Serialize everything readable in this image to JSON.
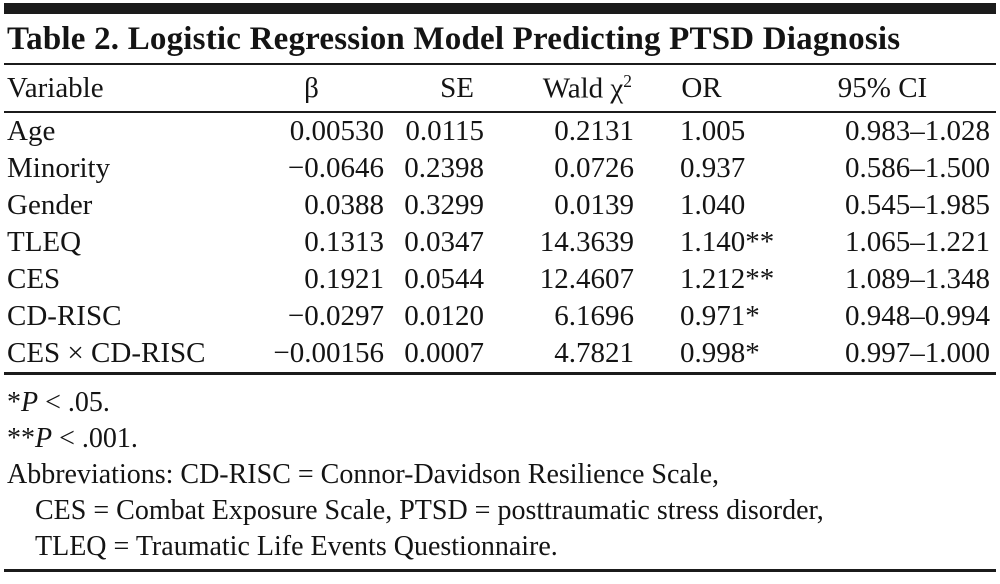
{
  "colors": {
    "background": "#ffffff",
    "text": "#141414",
    "rule": "#1b1b1b"
  },
  "table": {
    "title": "Table 2. Logistic Regression Model Predicting PTSD Diagnosis",
    "header": {
      "variable": "Variable",
      "beta": "β",
      "se": "SE",
      "wald_base": "Wald χ",
      "wald_sup": "2",
      "or": "OR",
      "ci": "95% CI"
    },
    "rows": [
      {
        "variable": "Age",
        "beta": "0.00530",
        "se": "0.0115",
        "wald": "0.2131",
        "or": "1.005",
        "or_stars": "",
        "ci": "0.983–1.028"
      },
      {
        "variable": "Minority",
        "beta": "−0.0646",
        "se": "0.2398",
        "wald": "0.0726",
        "or": "0.937",
        "or_stars": "",
        "ci": "0.586–1.500"
      },
      {
        "variable": "Gender",
        "beta": "0.0388",
        "se": "0.3299",
        "wald": "0.0139",
        "or": "1.040",
        "or_stars": "",
        "ci": "0.545–1.985"
      },
      {
        "variable": "TLEQ",
        "beta": "0.1313",
        "se": "0.0347",
        "wald": "14.3639",
        "or": "1.140",
        "or_stars": "**",
        "ci": "1.065–1.221"
      },
      {
        "variable": "CES",
        "beta": "0.1921",
        "se": "0.0544",
        "wald": "12.4607",
        "or": "1.212",
        "or_stars": "**",
        "ci": "1.089–1.348"
      },
      {
        "variable": "CD-RISC",
        "beta": "−0.0297",
        "se": "0.0120",
        "wald": "6.1696",
        "or": "0.971",
        "or_stars": "*",
        "ci": "0.948–0.994"
      },
      {
        "variable": "CES × CD-RISC",
        "beta": "−0.00156",
        "se": "0.0007",
        "wald": "4.7821",
        "or": "0.998",
        "or_stars": "*",
        "ci": "0.997–1.000"
      }
    ]
  },
  "footnotes": {
    "sig1": {
      "marker": "*",
      "p": "P",
      "rest": " < .05."
    },
    "sig2": {
      "marker": "**",
      "p": "P",
      "rest": " < .001."
    },
    "abbrev_line1": "Abbreviations: CD-RISC = Connor-Davidson Resilience Scale,",
    "abbrev_line2": "CES = Combat Exposure Scale, PTSD = posttraumatic stress disorder,",
    "abbrev_line3": "TLEQ = Traumatic Life Events Questionnaire."
  }
}
